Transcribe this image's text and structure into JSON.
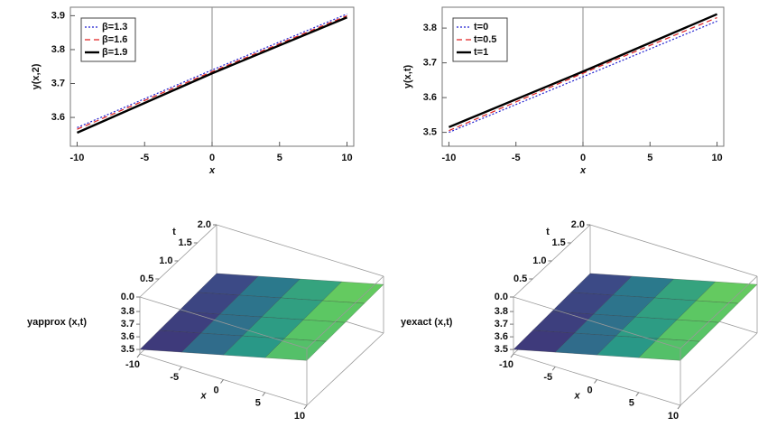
{
  "chart_data": [
    {
      "type": "line",
      "ylabel": "y(x,2)",
      "xlabel": "x",
      "x": [
        -10,
        0,
        10
      ],
      "series": [
        {
          "name": "β=1.3",
          "color": "#1f1fd0",
          "dash": "dotted",
          "values": [
            3.57,
            3.74,
            3.905
          ]
        },
        {
          "name": "β=1.6",
          "color": "#e02020",
          "dash": "dashed",
          "values": [
            3.565,
            3.735,
            3.9
          ]
        },
        {
          "name": "β=1.9",
          "color": "#000000",
          "dash": "solid",
          "values": [
            3.555,
            3.73,
            3.895
          ]
        }
      ],
      "xlim": [
        -10.5,
        10.5
      ],
      "xticks": [
        -10,
        -5,
        0,
        5,
        10
      ],
      "ylim": [
        3.515,
        3.925
      ],
      "yticks": [
        3.6,
        3.7,
        3.8,
        3.9
      ],
      "legend": "upper left"
    },
    {
      "type": "line",
      "ylabel": "y(x,t)",
      "xlabel": "x",
      "x": [
        -10,
        0,
        10
      ],
      "series": [
        {
          "name": "t=0",
          "color": "#1f1fd0",
          "dash": "dotted",
          "values": [
            3.5,
            3.66,
            3.82
          ]
        },
        {
          "name": "t=0.5",
          "color": "#e02020",
          "dash": "dashed",
          "values": [
            3.505,
            3.67,
            3.83
          ]
        },
        {
          "name": "t=1",
          "color": "#000000",
          "dash": "solid",
          "values": [
            3.515,
            3.675,
            3.84
          ]
        }
      ],
      "xlim": [
        -10.5,
        10.5
      ],
      "xticks": [
        -10,
        -5,
        0,
        5,
        10
      ],
      "ylim": [
        3.46,
        3.86
      ],
      "yticks": [
        3.5,
        3.6,
        3.7,
        3.8
      ],
      "legend": "upper left"
    },
    {
      "type": "surface",
      "xlabel": "x",
      "tlabel": "t",
      "zlabel": "yapprox (x,t)",
      "colormap": "viridis",
      "x": [
        -10,
        -5,
        0,
        5,
        10
      ],
      "t": [
        0,
        0.5,
        1,
        1.5,
        2
      ],
      "z": [
        [
          3.5,
          3.58,
          3.66,
          3.74,
          3.82
        ],
        [
          3.508,
          3.588,
          3.668,
          3.748,
          3.828
        ],
        [
          3.515,
          3.595,
          3.675,
          3.755,
          3.835
        ],
        [
          3.523,
          3.603,
          3.683,
          3.763,
          3.843
        ],
        [
          3.53,
          3.61,
          3.69,
          3.77,
          3.85
        ]
      ],
      "xlim": [
        -10,
        10
      ],
      "tlim": [
        0,
        2
      ],
      "zlim": [
        3.465,
        3.915
      ],
      "xticks": [
        -10,
        -5,
        0,
        5,
        10
      ],
      "tticks": [
        {
          "value": 0,
          "label": "0.0"
        },
        0.5,
        {
          "value": 1,
          "label": "1.0"
        },
        1.5,
        {
          "value": 2,
          "label": "2.0"
        }
      ],
      "zticks": [
        3.5,
        3.6,
        3.7,
        3.8
      ]
    },
    {
      "type": "surface",
      "xlabel": "x",
      "tlabel": "t",
      "zlabel": "yexact (x,t)",
      "colormap": "viridis",
      "x": [
        -10,
        -5,
        0,
        5,
        10
      ],
      "t": [
        0,
        0.5,
        1,
        1.5,
        2
      ],
      "z": [
        [
          3.5,
          3.58,
          3.66,
          3.74,
          3.82
        ],
        [
          3.508,
          3.588,
          3.668,
          3.748,
          3.828
        ],
        [
          3.515,
          3.595,
          3.675,
          3.755,
          3.835
        ],
        [
          3.523,
          3.603,
          3.683,
          3.763,
          3.843
        ],
        [
          3.53,
          3.61,
          3.69,
          3.77,
          3.85
        ]
      ],
      "xlim": [
        -10,
        10
      ],
      "tlim": [
        0,
        2
      ],
      "zlim": [
        3.465,
        3.915
      ],
      "xticks": [
        -10,
        -5,
        0,
        5,
        10
      ],
      "tticks": [
        {
          "value": 0,
          "label": "0.0"
        },
        0.5,
        {
          "value": 1,
          "label": "1.0"
        },
        1.5,
        {
          "value": 2,
          "label": "2.0"
        }
      ],
      "zticks": [
        3.5,
        3.6,
        3.7,
        3.8
      ]
    }
  ]
}
